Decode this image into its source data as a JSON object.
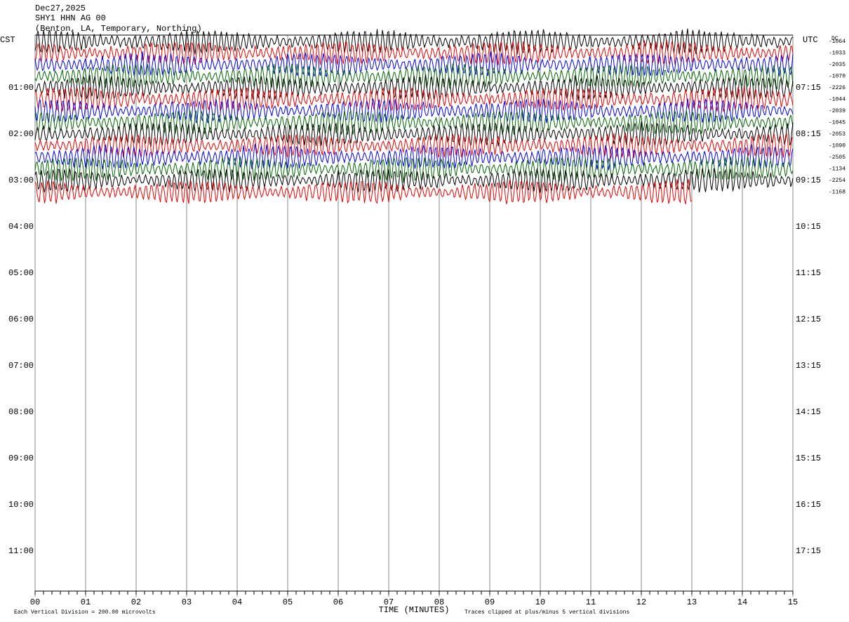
{
  "header": {
    "date": "Dec27,2025",
    "station": "SHY1 HHN AG 00",
    "location": "(Benton, LA, Temporary, Northing)"
  },
  "left_axis": {
    "title": "CST",
    "labels": [
      "01:00",
      "02:00",
      "03:00",
      "04:00",
      "05:00",
      "06:00",
      "07:00",
      "08:00",
      "09:00",
      "10:00",
      "11:00"
    ]
  },
  "right_axis": {
    "title": "UTC",
    "labels": [
      "07:15",
      "08:15",
      "09:15",
      "10:15",
      "11:15",
      "12:15",
      "13:15",
      "14:15",
      "15:15",
      "16:15",
      "17:15"
    ]
  },
  "dc": {
    "title": "DC",
    "values": [
      "-1064",
      "-1033",
      "-2035",
      "-1070",
      "-2226",
      "-1044",
      "-2039",
      "-1045",
      "-2053",
      "-1090",
      "-2505",
      "-1134",
      "-2254",
      "-1168"
    ]
  },
  "x_axis": {
    "labels": [
      "00",
      "01",
      "02",
      "03",
      "04",
      "05",
      "06",
      "07",
      "08",
      "09",
      "10",
      "11",
      "12",
      "13",
      "14",
      "15"
    ],
    "title": "TIME (MINUTES)"
  },
  "footer": {
    "scale": "Each Vertical Division =  200.00 microvolts",
    "clip": "Traces clipped at plus/minus 5 vertical divisions"
  }
}
